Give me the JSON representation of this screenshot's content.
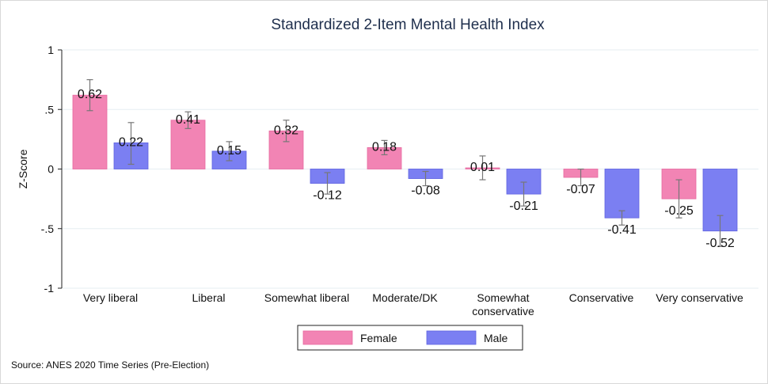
{
  "chart_data": {
    "type": "bar",
    "title": "Standardized 2-Item Mental Health Index",
    "ylabel": "Z-Score",
    "xlabel": "",
    "ylim": [
      -1,
      1
    ],
    "yticks": [
      {
        "value": 1,
        "label": "1"
      },
      {
        "value": 0.5,
        "label": ".5"
      },
      {
        "value": 0,
        "label": "0"
      },
      {
        "value": -0.5,
        "label": "-.5"
      },
      {
        "value": -1,
        "label": "-1"
      }
    ],
    "grid": true,
    "legend_position": "bottom",
    "categories": [
      [
        "Very liberal"
      ],
      [
        "Liberal"
      ],
      [
        "Somewhat liberal"
      ],
      [
        "Moderate/DK"
      ],
      [
        "Somewhat",
        "conservative"
      ],
      [
        "Conservative"
      ],
      [
        "Very conservative"
      ]
    ],
    "series": [
      {
        "name": "Female",
        "color": "#f284b4",
        "values": [
          0.62,
          0.41,
          0.32,
          0.18,
          0.01,
          -0.07,
          -0.25
        ],
        "labels": [
          "0.62",
          "0.41",
          "0.32",
          "0.18",
          "0.01",
          "-0.07",
          "-0.25"
        ],
        "ci_low": [
          0.49,
          0.34,
          0.23,
          0.12,
          -0.09,
          -0.14,
          -0.41
        ],
        "ci_high": [
          0.75,
          0.48,
          0.41,
          0.24,
          0.11,
          0.0,
          -0.09
        ]
      },
      {
        "name": "Male",
        "color": "#7b7ff2",
        "values": [
          0.22,
          0.15,
          -0.12,
          -0.08,
          -0.21,
          -0.41,
          -0.52
        ],
        "labels": [
          "0.22",
          "0.15",
          "-0.12",
          "-0.08",
          "-0.21",
          "-0.41",
          "-0.52"
        ],
        "ci_low": [
          0.04,
          0.07,
          -0.21,
          -0.14,
          -0.31,
          -0.47,
          -0.65
        ],
        "ci_high": [
          0.39,
          0.23,
          -0.03,
          -0.02,
          -0.11,
          -0.35,
          -0.39
        ]
      }
    ]
  },
  "source_note": "Source: ANES 2020 Time Series (Pre-Election)"
}
